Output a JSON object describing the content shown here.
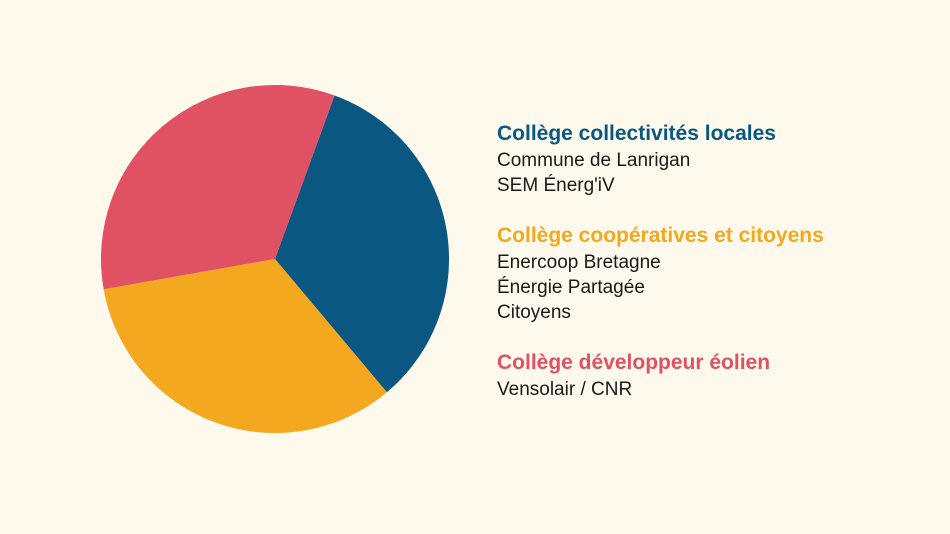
{
  "chart_data": {
    "type": "pie",
    "slices": [
      {
        "label": "Collège collectivités locales",
        "value": 33.33,
        "color": "#0a5782"
      },
      {
        "label": "Collège coopératives et citoyens",
        "value": 33.33,
        "color": "#f3a81f"
      },
      {
        "label": "Collège développeur éolien",
        "value": 33.34,
        "color": "#e05164"
      }
    ],
    "start_angle_deg": 20,
    "direction": "clockwise",
    "legend_position": "right"
  },
  "legend": {
    "groups": [
      {
        "title": "Collège collectivités locales",
        "color": "#0a5782",
        "members": [
          "Commune de Lanrigan",
          "SEM Énerg'iV"
        ]
      },
      {
        "title": "Collège coopératives et citoyens",
        "color": "#f3a81f",
        "members": [
          "Enercoop Bretagne",
          "Énergie Partagée",
          "Citoyens"
        ]
      },
      {
        "title": "Collège développeur éolien",
        "color": "#e05164",
        "members": [
          "Vensolair / CNR"
        ]
      }
    ]
  }
}
